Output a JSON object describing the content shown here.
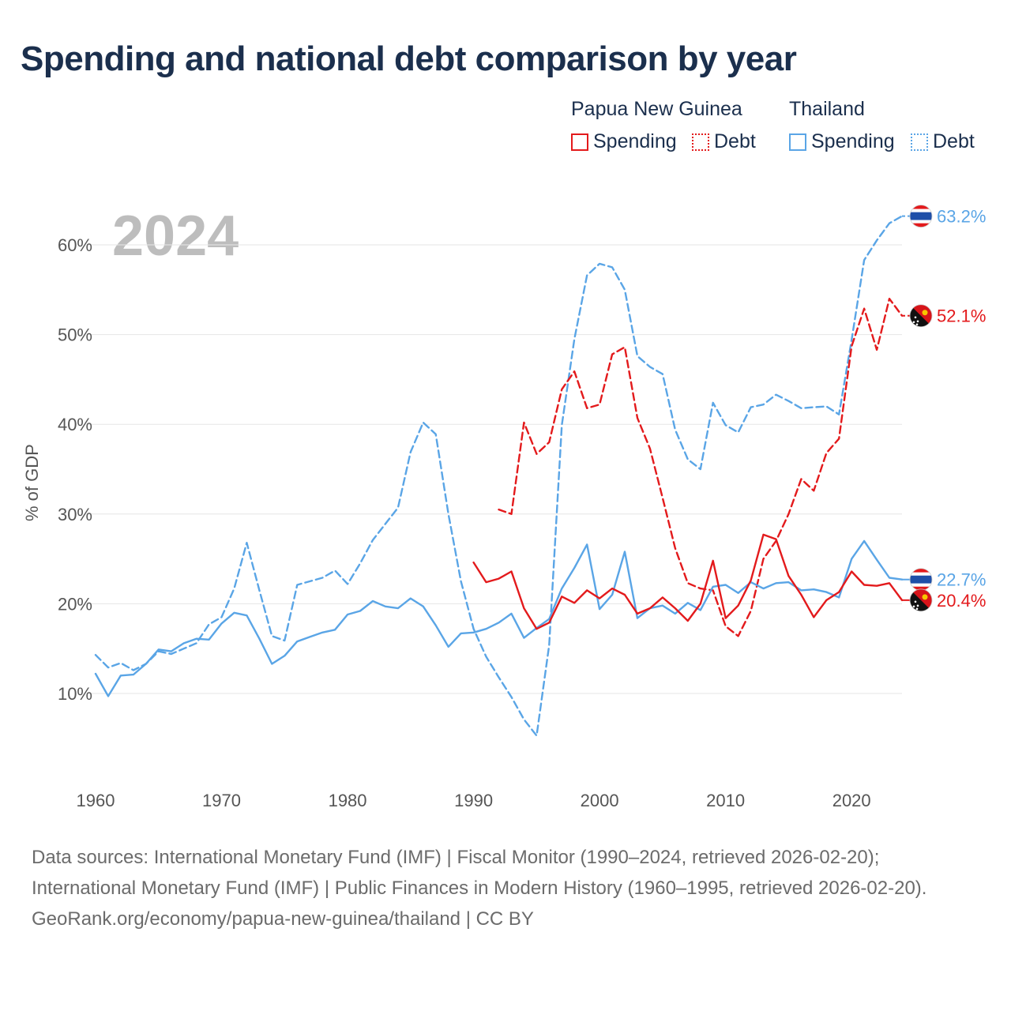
{
  "title": "Spending and national debt comparison by year",
  "year_label": "2024",
  "legend": {
    "groups": [
      {
        "name": "Papua New Guinea",
        "color": "#e31a1c",
        "spending_label": "Spending",
        "debt_label": "Debt"
      },
      {
        "name": "Thailand",
        "color": "#5aa5e6",
        "spending_label": "Spending",
        "debt_label": "Debt"
      }
    ]
  },
  "footer": {
    "sources": "Data sources: International Monetary Fund (IMF) | Fiscal Monitor (1990–2024, retrieved 2026-02-20); International Monetary Fund (IMF) | Public Finances in Modern History (1960–1995, retrieved 2026-02-20).",
    "credit": "GeoRank.org/economy/papua-new-guinea/thailand | CC BY"
  },
  "chart_data": {
    "type": "line",
    "title": "Spending and national debt comparison by year",
    "xlabel": "",
    "ylabel": "% of GDP",
    "xlim": [
      1960,
      2024
    ],
    "ylim": [
      0,
      65
    ],
    "x_ticks": [
      1960,
      1970,
      1980,
      1990,
      2000,
      2010,
      2020
    ],
    "y_ticks": [
      10,
      20,
      30,
      40,
      50,
      60
    ],
    "y_tick_labels": [
      "10%",
      "20%",
      "30%",
      "40%",
      "50%",
      "60%"
    ],
    "grid": true,
    "series": [
      {
        "name": "Thailand Debt",
        "country": "Thailand",
        "kind": "Debt",
        "color": "#5aa5e6",
        "dashed": true,
        "end_label": "63.2%",
        "x": [
          1960,
          1961,
          1962,
          1963,
          1964,
          1965,
          1966,
          1967,
          1968,
          1969,
          1970,
          1971,
          1972,
          1973,
          1974,
          1975,
          1976,
          1977,
          1978,
          1979,
          1980,
          1981,
          1982,
          1983,
          1984,
          1985,
          1986,
          1987,
          1988,
          1989,
          1990,
          1991,
          1992,
          1993,
          1994,
          1995,
          1996,
          1997,
          1998,
          1999,
          2000,
          2001,
          2002,
          2003,
          2004,
          2005,
          2006,
          2007,
          2008,
          2009,
          2010,
          2011,
          2012,
          2013,
          2014,
          2015,
          2016,
          2017,
          2018,
          2019,
          2020,
          2021,
          2022,
          2023,
          2024
        ],
        "y": [
          14.3,
          12.9,
          13.4,
          12.6,
          13.3,
          14.7,
          14.4,
          15.0,
          15.6,
          17.7,
          18.5,
          21.7,
          26.8,
          21.5,
          16.4,
          15.9,
          22.1,
          22.5,
          22.9,
          23.7,
          22.2,
          24.5,
          27.1,
          28.9,
          30.7,
          36.9,
          40.2,
          38.9,
          30.0,
          22.5,
          17.2,
          14.1,
          11.8,
          9.6,
          7.1,
          5.3,
          15.4,
          39.9,
          49.5,
          56.6,
          57.9,
          57.5,
          55.0,
          47.6,
          46.4,
          45.6,
          39.4,
          36.1,
          35.0,
          42.4,
          39.9,
          39.1,
          41.9,
          42.2,
          43.3,
          42.6,
          41.8,
          41.9,
          42.0,
          41.1,
          49.4,
          58.3,
          60.5,
          62.4,
          63.2
        ]
      },
      {
        "name": "Papua New Guinea Debt",
        "country": "Papua New Guinea",
        "kind": "Debt",
        "color": "#e31a1c",
        "dashed": true,
        "end_label": "52.1%",
        "x": [
          1992,
          1993,
          1994,
          1995,
          1996,
          1997,
          1998,
          1999,
          2000,
          2001,
          2002,
          2003,
          2004,
          2005,
          2006,
          2007,
          2008,
          2009,
          2010,
          2011,
          2012,
          2013,
          2014,
          2015,
          2016,
          2017,
          2018,
          2019,
          2020,
          2021,
          2022,
          2023,
          2024
        ],
        "y": [
          30.5,
          30.0,
          40.2,
          36.7,
          38.0,
          43.9,
          45.9,
          41.8,
          42.2,
          47.8,
          48.6,
          40.7,
          37.3,
          31.8,
          26.2,
          22.3,
          21.7,
          21.5,
          17.5,
          16.4,
          19.2,
          25.0,
          27.0,
          30.0,
          33.9,
          32.6,
          36.8,
          38.4,
          48.7,
          52.9,
          48.3,
          54.0,
          52.1
        ]
      },
      {
        "name": "Thailand Spending",
        "country": "Thailand",
        "kind": "Spending",
        "color": "#5aa5e6",
        "dashed": false,
        "end_label": "22.7%",
        "x": [
          1960,
          1961,
          1962,
          1963,
          1964,
          1965,
          1966,
          1967,
          1968,
          1969,
          1970,
          1971,
          1972,
          1973,
          1974,
          1975,
          1976,
          1977,
          1978,
          1979,
          1980,
          1981,
          1982,
          1983,
          1984,
          1985,
          1986,
          1987,
          1988,
          1989,
          1990,
          1991,
          1992,
          1993,
          1994,
          1995,
          1996,
          1997,
          1998,
          1999,
          2000,
          2001,
          2002,
          2003,
          2004,
          2005,
          2006,
          2007,
          2008,
          2009,
          2010,
          2011,
          2012,
          2013,
          2014,
          2015,
          2016,
          2017,
          2018,
          2019,
          2020,
          2021,
          2022,
          2023,
          2024
        ],
        "y": [
          12.2,
          9.7,
          12.0,
          12.1,
          13.3,
          14.9,
          14.7,
          15.6,
          16.1,
          16.0,
          17.8,
          19.0,
          18.7,
          16.1,
          13.3,
          14.2,
          15.8,
          16.3,
          16.8,
          17.1,
          18.8,
          19.2,
          20.3,
          19.7,
          19.5,
          20.6,
          19.7,
          17.6,
          15.2,
          16.7,
          16.8,
          17.2,
          17.9,
          18.9,
          16.2,
          17.3,
          18.3,
          21.7,
          24.0,
          26.6,
          19.4,
          21.0,
          25.8,
          18.4,
          19.5,
          19.8,
          18.9,
          20.1,
          19.3,
          21.9,
          22.1,
          21.2,
          22.4,
          21.7,
          22.3,
          22.4,
          21.5,
          21.6,
          21.3,
          20.7,
          25.0,
          27.0,
          24.9,
          22.9,
          22.7
        ]
      },
      {
        "name": "Papua New Guinea Spending",
        "country": "Papua New Guinea",
        "kind": "Spending",
        "color": "#e31a1c",
        "dashed": false,
        "end_label": "20.4%",
        "x": [
          1990,
          1991,
          1992,
          1993,
          1994,
          1995,
          1996,
          1997,
          1998,
          1999,
          2000,
          2001,
          2002,
          2003,
          2004,
          2005,
          2006,
          2007,
          2008,
          2009,
          2010,
          2011,
          2012,
          2013,
          2014,
          2015,
          2016,
          2017,
          2018,
          2019,
          2020,
          2021,
          2022,
          2023,
          2024
        ],
        "y": [
          24.6,
          22.4,
          22.8,
          23.6,
          19.5,
          17.2,
          17.9,
          20.8,
          20.1,
          21.5,
          20.6,
          21.7,
          21.0,
          18.9,
          19.5,
          20.7,
          19.5,
          18.1,
          20.0,
          24.8,
          18.4,
          19.8,
          22.6,
          27.7,
          27.2,
          23.1,
          21.0,
          18.5,
          20.4,
          21.3,
          23.6,
          22.1,
          22.0,
          22.3,
          20.4
        ]
      }
    ]
  }
}
